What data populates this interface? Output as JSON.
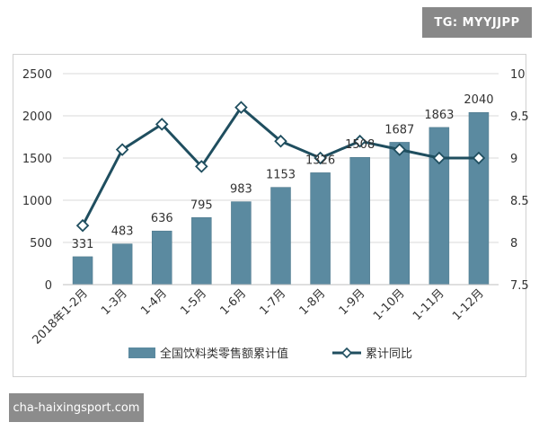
{
  "badge": {
    "text": "TG: MYYJJPP"
  },
  "watermark": {
    "text": "cha-haixingsport.com"
  },
  "colors": {
    "bar": "#5b8aa0",
    "bar_edge": "#4c7689",
    "line": "#1f4e5f",
    "marker_fill": "#ffffff"
  },
  "chart_data": {
    "type": "bar",
    "title": "",
    "categories": [
      "2018年1-2月",
      "1-3月",
      "1-4月",
      "1-5月",
      "1-6月",
      "1-7月",
      "1-8月",
      "1-9月",
      "1-10月",
      "1-11月",
      "1-12月"
    ],
    "series": [
      {
        "name": "全国饮料类零售额累计值",
        "type": "bar",
        "axis": "left",
        "values": [
          331,
          483,
          636,
          795,
          983,
          1153,
          1326,
          1508,
          1687,
          1863,
          2040
        ]
      },
      {
        "name": "累计同比",
        "type": "line",
        "axis": "right",
        "values": [
          8.2,
          9.1,
          9.4,
          8.9,
          9.6,
          9.2,
          9.0,
          9.2,
          9.1,
          9.0,
          9.0
        ]
      }
    ],
    "ylim_left": [
      0,
      2500
    ],
    "yticks_left": [
      "0",
      "500",
      "1000",
      "1500",
      "2000",
      "2500"
    ],
    "ylim_right": [
      7.5,
      10
    ],
    "yticks_right": [
      "7.5",
      "8",
      "8.5",
      "9",
      "9.5",
      "10"
    ],
    "grid": true,
    "legend": "bottom"
  }
}
